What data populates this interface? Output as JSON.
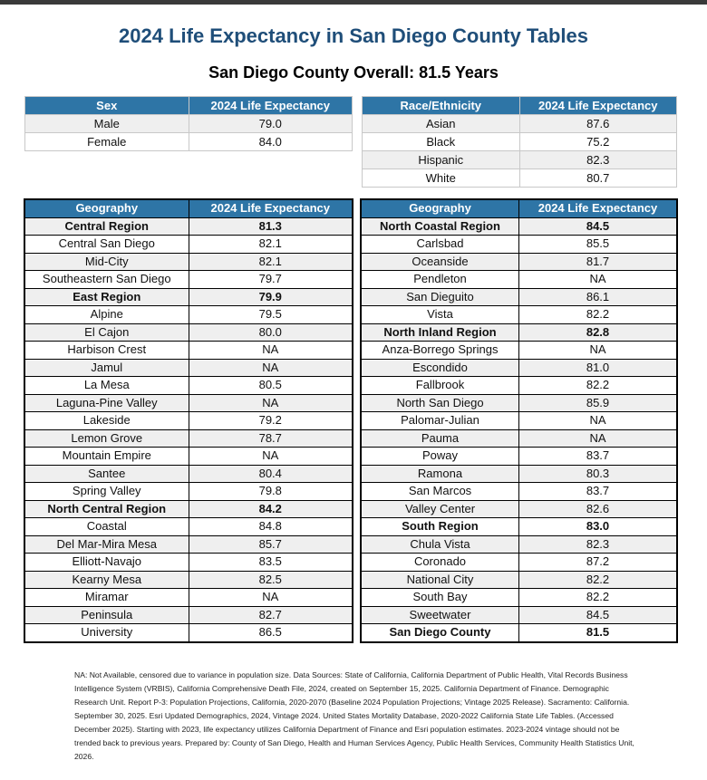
{
  "title": "2024 Life Expectancy in San Diego County Tables",
  "subtitle": "San Diego County Overall: 81.5 Years",
  "colors": {
    "header": "#2e75a6",
    "title": "#1f4e79"
  },
  "sex_table": {
    "headers": [
      "Sex",
      "2024 Life Expectancy"
    ],
    "rows": [
      [
        "Male",
        "79.0"
      ],
      [
        "Female",
        "84.0"
      ]
    ]
  },
  "race_table": {
    "headers": [
      "Race/Ethnicity",
      "2024 Life Expectancy"
    ],
    "rows": [
      [
        "Asian",
        "87.6"
      ],
      [
        "Black",
        "75.2"
      ],
      [
        "Hispanic",
        "82.3"
      ],
      [
        "White",
        "80.7"
      ]
    ]
  },
  "geo_left": {
    "headers": [
      "Geography",
      "2024 Life Expectancy"
    ],
    "rows": [
      {
        "name": "Central Region",
        "value": "81.3",
        "bold": true
      },
      {
        "name": "Central San Diego",
        "value": "82.1"
      },
      {
        "name": "Mid-City",
        "value": "82.1"
      },
      {
        "name": "Southeastern San Diego",
        "value": "79.7"
      },
      {
        "name": "East Region",
        "value": "79.9",
        "bold": true
      },
      {
        "name": "Alpine",
        "value": "79.5"
      },
      {
        "name": "El Cajon",
        "value": "80.0"
      },
      {
        "name": "Harbison Crest",
        "value": "NA"
      },
      {
        "name": "Jamul",
        "value": "NA"
      },
      {
        "name": "La Mesa",
        "value": "80.5"
      },
      {
        "name": "Laguna-Pine Valley",
        "value": "NA"
      },
      {
        "name": "Lakeside",
        "value": "79.2"
      },
      {
        "name": "Lemon Grove",
        "value": "78.7"
      },
      {
        "name": "Mountain Empire",
        "value": "NA"
      },
      {
        "name": "Santee",
        "value": "80.4"
      },
      {
        "name": "Spring Valley",
        "value": "79.8"
      },
      {
        "name": "North Central Region",
        "value": "84.2",
        "bold": true
      },
      {
        "name": "Coastal",
        "value": "84.8"
      },
      {
        "name": "Del Mar-Mira Mesa",
        "value": "85.7"
      },
      {
        "name": "Elliott-Navajo",
        "value": "83.5"
      },
      {
        "name": "Kearny Mesa",
        "value": "82.5"
      },
      {
        "name": "Miramar",
        "value": "NA"
      },
      {
        "name": "Peninsula",
        "value": "82.7"
      },
      {
        "name": "University",
        "value": "86.5"
      }
    ]
  },
  "geo_right": {
    "headers": [
      "Geography",
      "2024 Life Expectancy"
    ],
    "rows": [
      {
        "name": "North Coastal Region",
        "value": "84.5",
        "bold": true
      },
      {
        "name": "Carlsbad",
        "value": "85.5"
      },
      {
        "name": "Oceanside",
        "value": "81.7"
      },
      {
        "name": "Pendleton",
        "value": "NA"
      },
      {
        "name": "San Dieguito",
        "value": "86.1"
      },
      {
        "name": "Vista",
        "value": "82.2"
      },
      {
        "name": "North Inland Region",
        "value": "82.8",
        "bold": true
      },
      {
        "name": "Anza-Borrego Springs",
        "value": "NA"
      },
      {
        "name": "Escondido",
        "value": "81.0"
      },
      {
        "name": "Fallbrook",
        "value": "82.2"
      },
      {
        "name": "North San Diego",
        "value": "85.9"
      },
      {
        "name": "Palomar-Julian",
        "value": "NA"
      },
      {
        "name": "Pauma",
        "value": "NA"
      },
      {
        "name": "Poway",
        "value": "83.7"
      },
      {
        "name": "Ramona",
        "value": "80.3"
      },
      {
        "name": "San Marcos",
        "value": "83.7"
      },
      {
        "name": "Valley Center",
        "value": "82.6"
      },
      {
        "name": "South Region",
        "value": "83.0",
        "bold": true
      },
      {
        "name": "Chula Vista",
        "value": "82.3"
      },
      {
        "name": "Coronado",
        "value": "87.2"
      },
      {
        "name": "National City",
        "value": "82.2"
      },
      {
        "name": "South Bay",
        "value": "82.2"
      },
      {
        "name": "Sweetwater",
        "value": "84.5"
      },
      {
        "name": "San Diego County",
        "value": "81.5",
        "bold": true
      }
    ]
  },
  "footer": "NA: Not Available, censored due to variance in population size. Data Sources: State of California, California Department of Public Health, Vital Records Business Intelligence System (VRBIS), California Comprehensive Death File, 2024, created on September 15, 2025. California Department of Finance. Demographic Research Unit. Report P-3: Population Projections, California, 2020-2070 (Baseline 2024 Population Projections; Vintage 2025 Release). Sacramento: California. September 30, 2025. Esri Updated Demographics, 2024, Vintage 2024. United States Mortality Database, 2020-2022 California State Life Tables. (Accessed December 2025). Starting with 2023, life expectancy utilizes California Department of Finance and Esri population estimates. 2023-2024 vintage should not be trended back to previous years. Prepared by: County of San Diego, Health and Human Services Agency, Public Health Services, Community Health Statistics Unit, 2026."
}
